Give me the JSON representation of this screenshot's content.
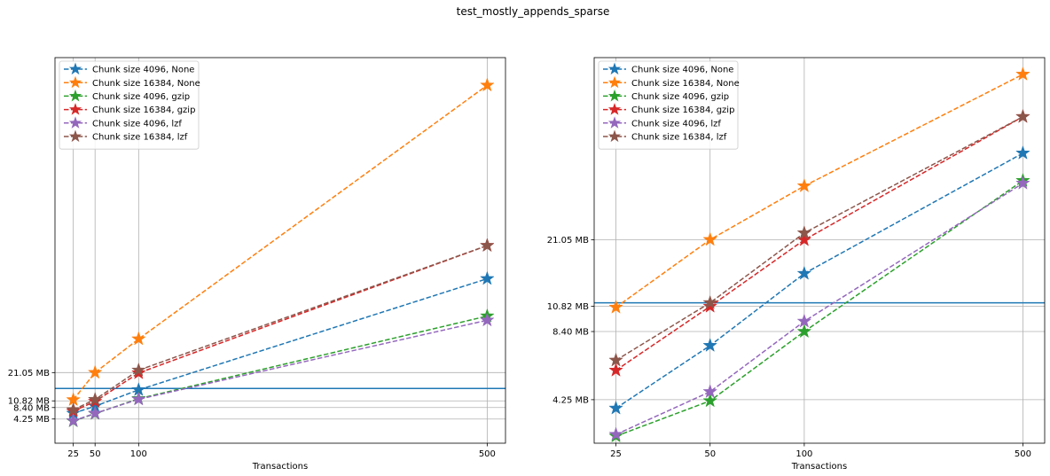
{
  "figure": {
    "suptitle": "test_mostly_appends_sparse"
  },
  "chart_data": [
    {
      "type": "line",
      "xscale": "linear",
      "yscale": "linear",
      "title": "",
      "xlabel": "Transactions",
      "ylabel": "",
      "x": [
        25,
        50,
        100,
        500
      ],
      "xticks": [
        25,
        50,
        100,
        500
      ],
      "xlim": [
        4,
        521
      ],
      "yticks": [
        {
          "value": 4.25,
          "label": "4.25 MB"
        },
        {
          "value": 8.4,
          "label": "8.40 MB"
        },
        {
          "value": 10.82,
          "label": "10.82 MB"
        },
        {
          "value": 21.05,
          "label": "21.05 MB"
        }
      ],
      "ylim": [
        -4.5,
        135
      ],
      "hline": 15.3,
      "grid": true,
      "legend": "upper left",
      "series": [
        {
          "name": "Chunk size 4096, None",
          "values": [
            6.3,
            8.9,
            14.8,
            55.0
          ],
          "color": "#1f77b4"
        },
        {
          "name": "Chunk size 16384, None",
          "values": [
            11.2,
            21.05,
            33.2,
            125.0
          ],
          "color": "#ff7f0e"
        },
        {
          "name": "Chunk size 4096, gzip",
          "values": [
            3.5,
            6.2,
            11.6,
            41.5
          ],
          "color": "#2ca02c"
        },
        {
          "name": "Chunk size 16384, gzip",
          "values": [
            7.1,
            10.6,
            20.9,
            67.0
          ],
          "color": "#d62728"
        },
        {
          "name": "Chunk size 4096, lzf",
          "values": [
            3.6,
            6.3,
            11.4,
            40.0
          ],
          "color": "#9467bd"
        },
        {
          "name": "Chunk size 16384, lzf",
          "values": [
            7.6,
            11.3,
            21.9,
            67.0
          ],
          "color": "#8c564b"
        }
      ]
    },
    {
      "type": "line",
      "xscale": "log",
      "yscale": "log",
      "title": "",
      "xlabel": "Transactions",
      "ylabel": "",
      "x": [
        25,
        50,
        100,
        500
      ],
      "xticks": [
        25,
        50,
        100,
        500
      ],
      "xlim": [
        21.3,
        587
      ],
      "yticks": [
        {
          "value": 4.25,
          "label": "4.25 MB"
        },
        {
          "value": 8.4,
          "label": "8.40 MB"
        },
        {
          "value": 10.82,
          "label": "10.82 MB"
        },
        {
          "value": 21.05,
          "label": "21.05 MB"
        }
      ],
      "ylim": [
        2.75,
        130
      ],
      "hline": 11.2,
      "grid": true,
      "legend": "upper left",
      "series": [
        {
          "name": "Chunk size 4096, None",
          "values": [
            3.9,
            7.3,
            15.0,
            50.0
          ],
          "color": "#1f77b4"
        },
        {
          "name": "Chunk size 16384, None",
          "values": [
            10.7,
            21.05,
            36.0,
            110.0
          ],
          "color": "#ff7f0e"
        },
        {
          "name": "Chunk size 4096, gzip",
          "values": [
            2.95,
            4.2,
            8.4,
            38.0
          ],
          "color": "#2ca02c"
        },
        {
          "name": "Chunk size 16384, gzip",
          "values": [
            5.7,
            10.8,
            21.0,
            72.0
          ],
          "color": "#d62728"
        },
        {
          "name": "Chunk size 4096, lzf",
          "values": [
            3.0,
            4.6,
            9.3,
            37.0
          ],
          "color": "#9467bd"
        },
        {
          "name": "Chunk size 16384, lzf",
          "values": [
            6.3,
            11.2,
            22.5,
            72.0
          ],
          "color": "#8c564b"
        }
      ]
    }
  ]
}
